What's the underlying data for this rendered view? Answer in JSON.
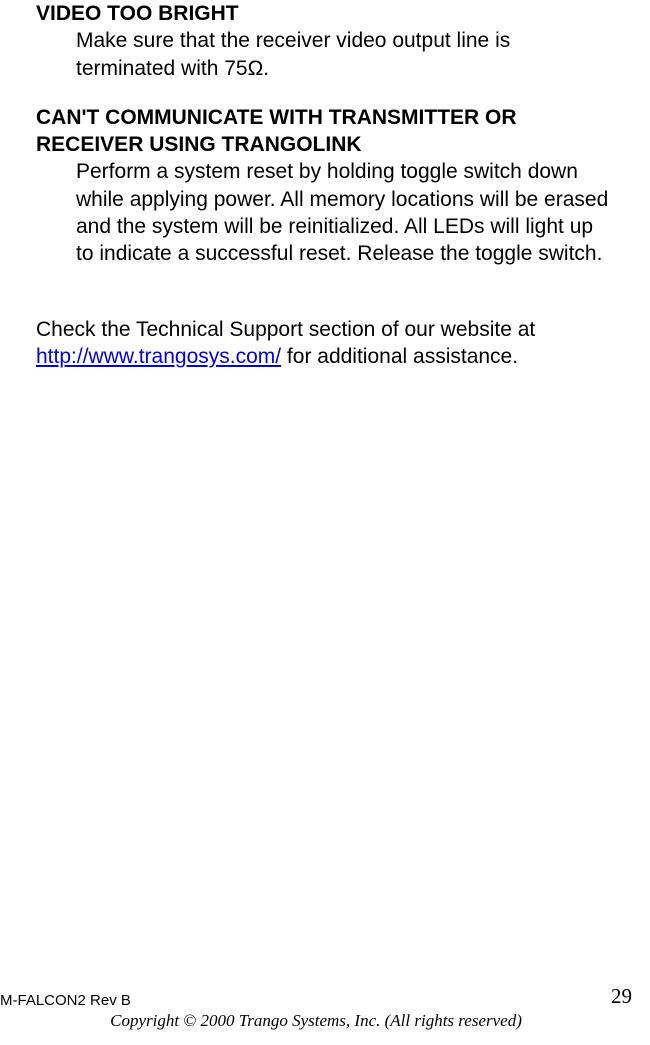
{
  "section1": {
    "heading": "VIDEO TOO BRIGHT",
    "body": "Make sure that the receiver video output line is terminated with 75Ω."
  },
  "section2": {
    "heading": "CAN'T COMMUNICATE WITH TRANSMITTER OR RECEIVER USING TRANGOLINK",
    "body": "Perform a system reset by holding toggle switch down while applying power.  All memory locations will be erased and the system will be reinitialized.  All LEDs will light up to indicate a successful reset.  Release the toggle switch."
  },
  "support": {
    "pre": "Check the Technical Support section of our website at ",
    "link_text": "http://www.trangosys.com/",
    "link_href": "http://www.trangosys.com/",
    "post": " for additional assistance."
  },
  "footer": {
    "left": "M-FALCON2 Rev B",
    "page": "29",
    "copyright": "Copyright © 2000 Trango Systems, Inc.  (All rights reserved)"
  },
  "colors": {
    "text": "#000000",
    "link": "#0000ee",
    "background": "#ffffff"
  },
  "typography": {
    "body_family": "Arial",
    "body_size_pt": 16,
    "footer_left_size_pt": 11,
    "footer_center_family": "Times New Roman",
    "footer_center_style": "italic",
    "footer_center_size_pt": 13,
    "page_number_family": "Times New Roman",
    "page_number_size_pt": 16
  }
}
